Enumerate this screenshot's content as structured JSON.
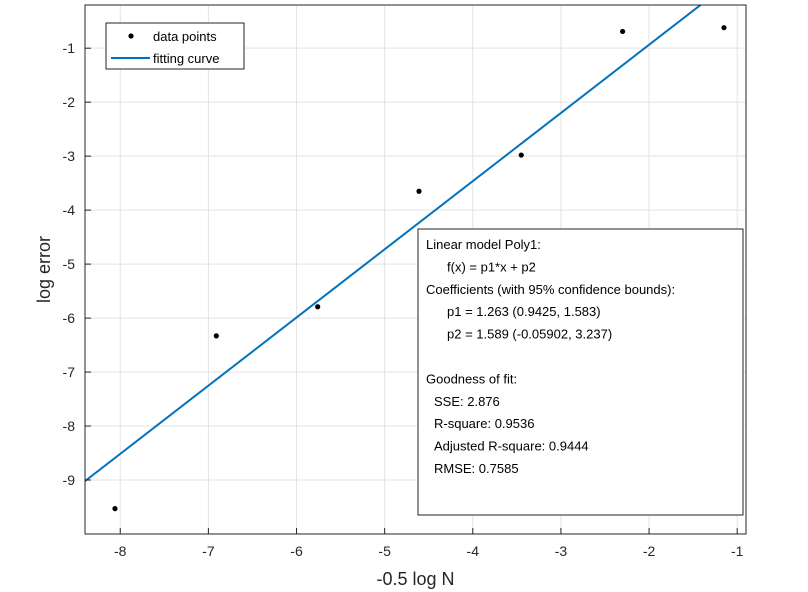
{
  "chart_data": {
    "type": "scatter",
    "title": "",
    "xlabel": "-0.5 log N",
    "ylabel": "log error",
    "xlim": [
      -8.4,
      -0.9
    ],
    "ylim": [
      -10.0,
      -0.2
    ],
    "xticks": [
      -8,
      -7,
      -6,
      -5,
      -4,
      -3,
      -2,
      -1
    ],
    "yticks": [
      -9,
      -8,
      -7,
      -6,
      -5,
      -4,
      -3,
      -2,
      -1
    ],
    "grid": true,
    "legend_position": "top-left",
    "series": [
      {
        "name": "data points",
        "kind": "markers",
        "color": "#000000",
        "x": [
          -8.06,
          -6.91,
          -5.76,
          -4.61,
          -3.45,
          -2.3,
          -1.15
        ],
        "y": [
          -9.53,
          -6.33,
          -5.79,
          -3.65,
          -2.98,
          -0.69,
          -0.62
        ]
      },
      {
        "name": "fitting curve",
        "kind": "line",
        "color": "#0072BD",
        "p1": 1.263,
        "p2": 1.589
      }
    ],
    "annotation": {
      "lines": [
        "Linear model Poly1:",
        "f(x) = p1*x + p2",
        "Coefficients (with 95% confidence bounds):",
        "p1 =       1.263  (0.9425, 1.583)",
        "p2 =       1.589  (-0.05902, 3.237)",
        "",
        "Goodness of fit:",
        "SSE: 2.876",
        "R-square: 0.9536",
        "Adjusted R-square: 0.9444",
        "RMSE: 0.7585"
      ]
    }
  }
}
